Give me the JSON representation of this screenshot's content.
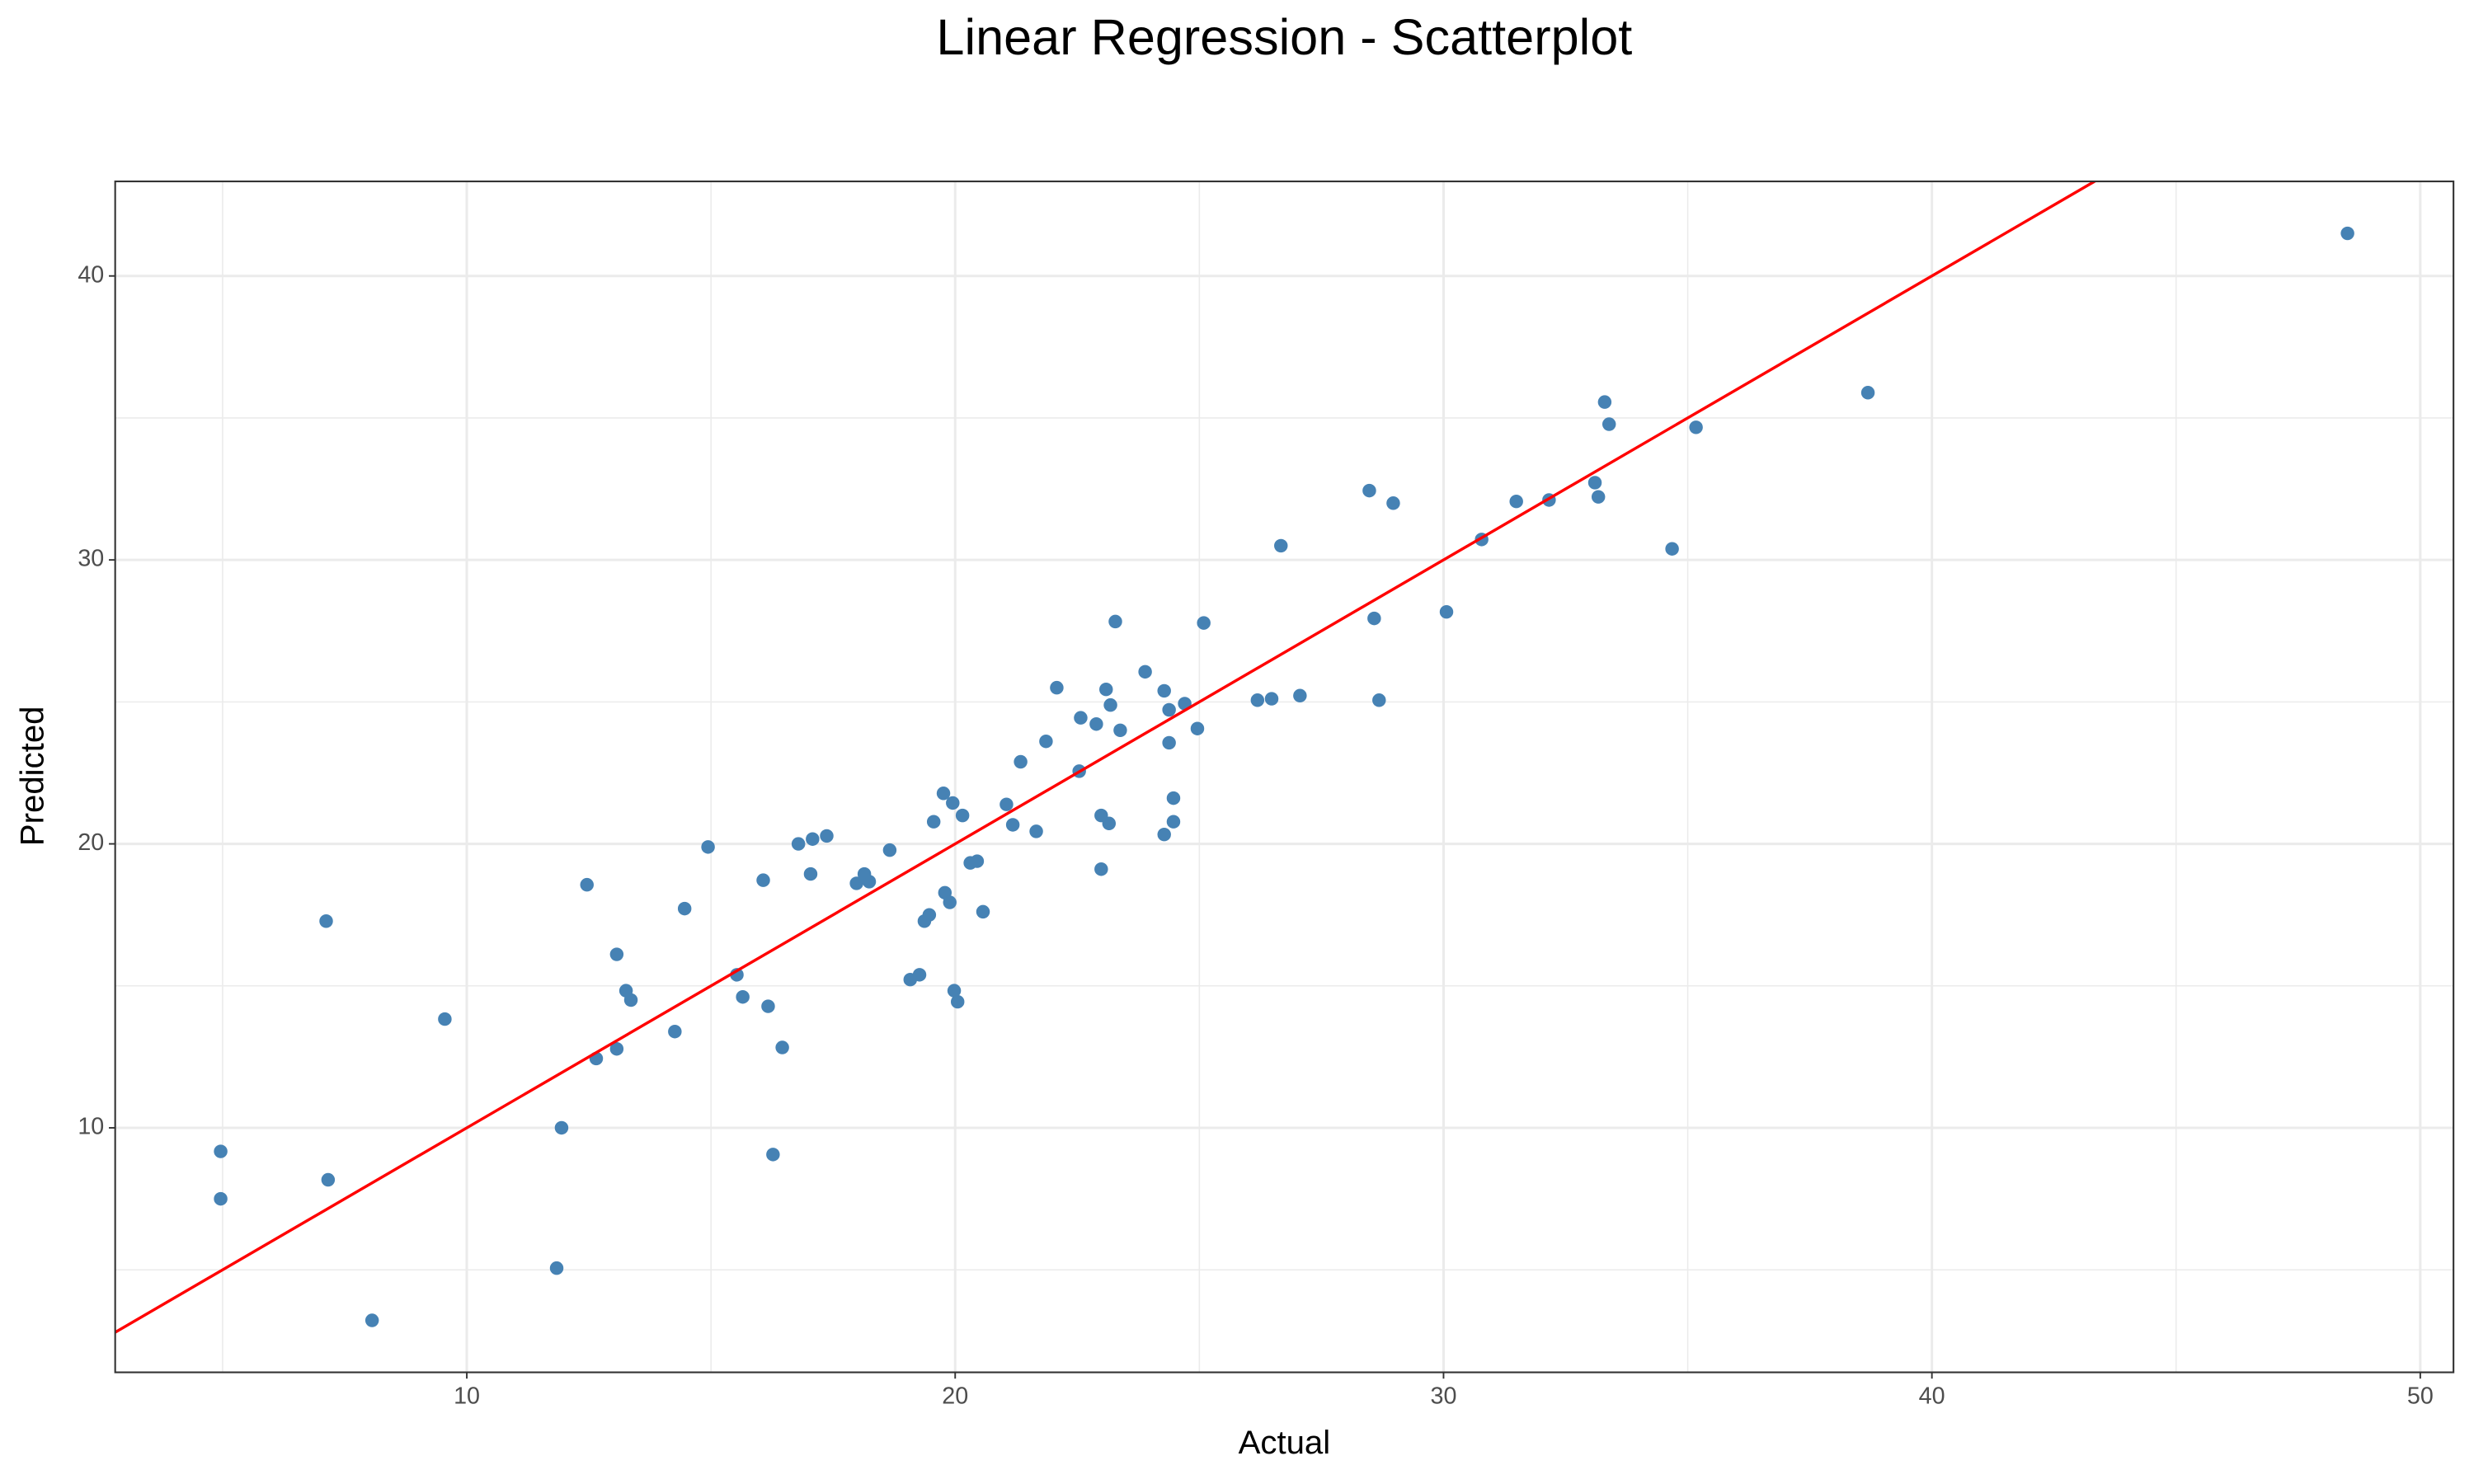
{
  "chart_data": {
    "type": "scatter",
    "title": "Linear Regression - Scatterplot",
    "x_label": "Actual",
    "y_label": "Predicted",
    "color": "#4682b4",
    "xlim": [
      2.8,
      50.68
    ],
    "ylim": [
      1.39,
      43.33
    ],
    "xticks": [
      10,
      20,
      30,
      40,
      50
    ],
    "yticks": [
      10,
      20,
      30,
      40
    ],
    "minor_xticks": [
      5,
      15,
      25,
      35,
      45
    ],
    "minor_yticks": [
      5,
      15,
      25,
      35
    ],
    "grid": true,
    "reference_line": {
      "slope": 1,
      "intercept": 0,
      "color": "#ff0000"
    },
    "x": [
      48.51,
      38.69,
      33.3,
      33.39,
      35.17,
      33.1,
      33.17,
      31.49,
      32.16,
      28.48,
      28.97,
      30.78,
      34.68,
      26.67,
      30.06,
      28.58,
      23.28,
      25.09,
      23.89,
      22.08,
      23.09,
      24.28,
      27.06,
      26.19,
      26.48,
      28.68,
      24.7,
      23.18,
      24.38,
      22.57,
      22.89,
      23.38,
      24.96,
      21.86,
      24.38,
      21.34,
      22.54,
      19.76,
      19.95,
      24.47,
      21.05,
      20.15,
      22.99,
      19.56,
      23.15,
      24.47,
      21.18,
      21.66,
      24.28,
      17.37,
      17.08,
      16.79,
      14.94,
      18.66,
      20.45,
      20.31,
      22.99,
      17.04,
      18.14,
      16.07,
      18.24,
      17.98,
      12.46,
      19.79,
      19.89,
      20.57,
      14.46,
      19.47,
      19.37,
      7.12,
      13.07,
      19.27,
      19.08,
      15.53,
      13.26,
      19.98,
      13.36,
      15.65,
      20.05,
      16.17,
      9.55,
      14.26,
      16.46,
      13.07,
      12.65,
      11.94,
      4.96,
      16.27,
      7.16,
      4.96,
      11.84,
      8.06
    ],
    "y": [
      41.5,
      35.89,
      35.56,
      34.78,
      34.67,
      32.72,
      32.22,
      32.06,
      32.11,
      32.44,
      32.0,
      30.72,
      30.39,
      30.5,
      28.17,
      27.94,
      27.83,
      27.78,
      26.06,
      25.5,
      25.44,
      25.39,
      25.22,
      25.06,
      25.11,
      25.06,
      24.94,
      24.89,
      24.72,
      24.44,
      24.22,
      24.0,
      24.06,
      23.61,
      23.56,
      22.89,
      22.56,
      21.78,
      21.44,
      21.61,
      21.39,
      21.0,
      21.0,
      20.78,
      20.72,
      20.78,
      20.67,
      20.44,
      20.33,
      20.28,
      20.17,
      20.0,
      19.89,
      19.78,
      19.39,
      19.33,
      19.11,
      18.94,
      18.94,
      18.72,
      18.67,
      18.61,
      18.56,
      18.28,
      17.94,
      17.61,
      17.72,
      17.5,
      17.28,
      17.28,
      16.11,
      15.39,
      15.22,
      15.39,
      14.83,
      14.83,
      14.5,
      14.61,
      14.44,
      14.28,
      13.83,
      13.39,
      12.83,
      12.78,
      12.44,
      10.0,
      9.17,
      9.06,
      8.17,
      7.5,
      5.06,
      3.22
    ]
  }
}
